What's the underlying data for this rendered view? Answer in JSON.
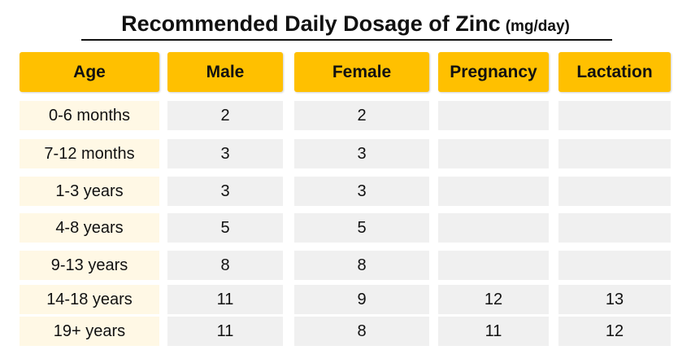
{
  "title": "Recommended Daily Dosage of Zinc",
  "title_unit": "(mg/day)",
  "colors": {
    "header": "#ffc000",
    "age_cell": "#fff8e5",
    "value_cell": "#f0f0f0"
  },
  "chart_data": {
    "type": "table",
    "title": "Recommended Daily Dosage of Zinc",
    "unit": "(mg/day)",
    "columns": [
      "Age",
      "Male",
      "Female",
      "Pregnancy",
      "Lactation"
    ],
    "rows": [
      [
        "0-6 months",
        "2",
        "2",
        "",
        ""
      ],
      [
        "7-12 months",
        "3",
        "3",
        "",
        ""
      ],
      [
        "1-3 years",
        "3",
        "3",
        "",
        ""
      ],
      [
        "4-8 years",
        "5",
        "5",
        "",
        ""
      ],
      [
        "9-13 years",
        "8",
        "8",
        "",
        ""
      ],
      [
        "14-18 years",
        "11",
        "9",
        "12",
        "13"
      ],
      [
        "19+ years",
        "11",
        "8",
        "11",
        "12"
      ]
    ]
  }
}
